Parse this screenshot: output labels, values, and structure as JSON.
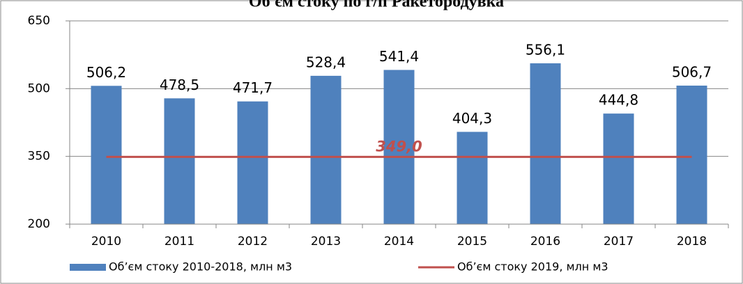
{
  "chart_data": {
    "type": "bar",
    "title": "Об'єм стоку по г/п Ракетородувка",
    "categories": [
      "2010",
      "2011",
      "2012",
      "2013",
      "2014",
      "2015",
      "2016",
      "2017",
      "2018"
    ],
    "series": [
      {
        "name": "Об’єм стоку 2010-2018, млн м3",
        "color": "#4f81bd",
        "type": "bar",
        "values": [
          506.2,
          478.5,
          471.7,
          528.4,
          541.4,
          404.3,
          556.1,
          444.8,
          506.7
        ],
        "value_labels": [
          "506,2",
          "478,5",
          "471,7",
          "528,4",
          "541,4",
          "404,3",
          "556,1",
          "444,8",
          "506,7"
        ]
      },
      {
        "name": "Об’єм стоку 2019, млн м3",
        "color": "#c0504d",
        "type": "line",
        "values": [
          349,
          349,
          349,
          349,
          349,
          349,
          349,
          349,
          349
        ]
      }
    ],
    "annotation": "349,0",
    "ylim": [
      200,
      650
    ],
    "yticks": [
      200,
      350,
      500,
      650
    ],
    "grid": true,
    "legend": "bottom"
  }
}
